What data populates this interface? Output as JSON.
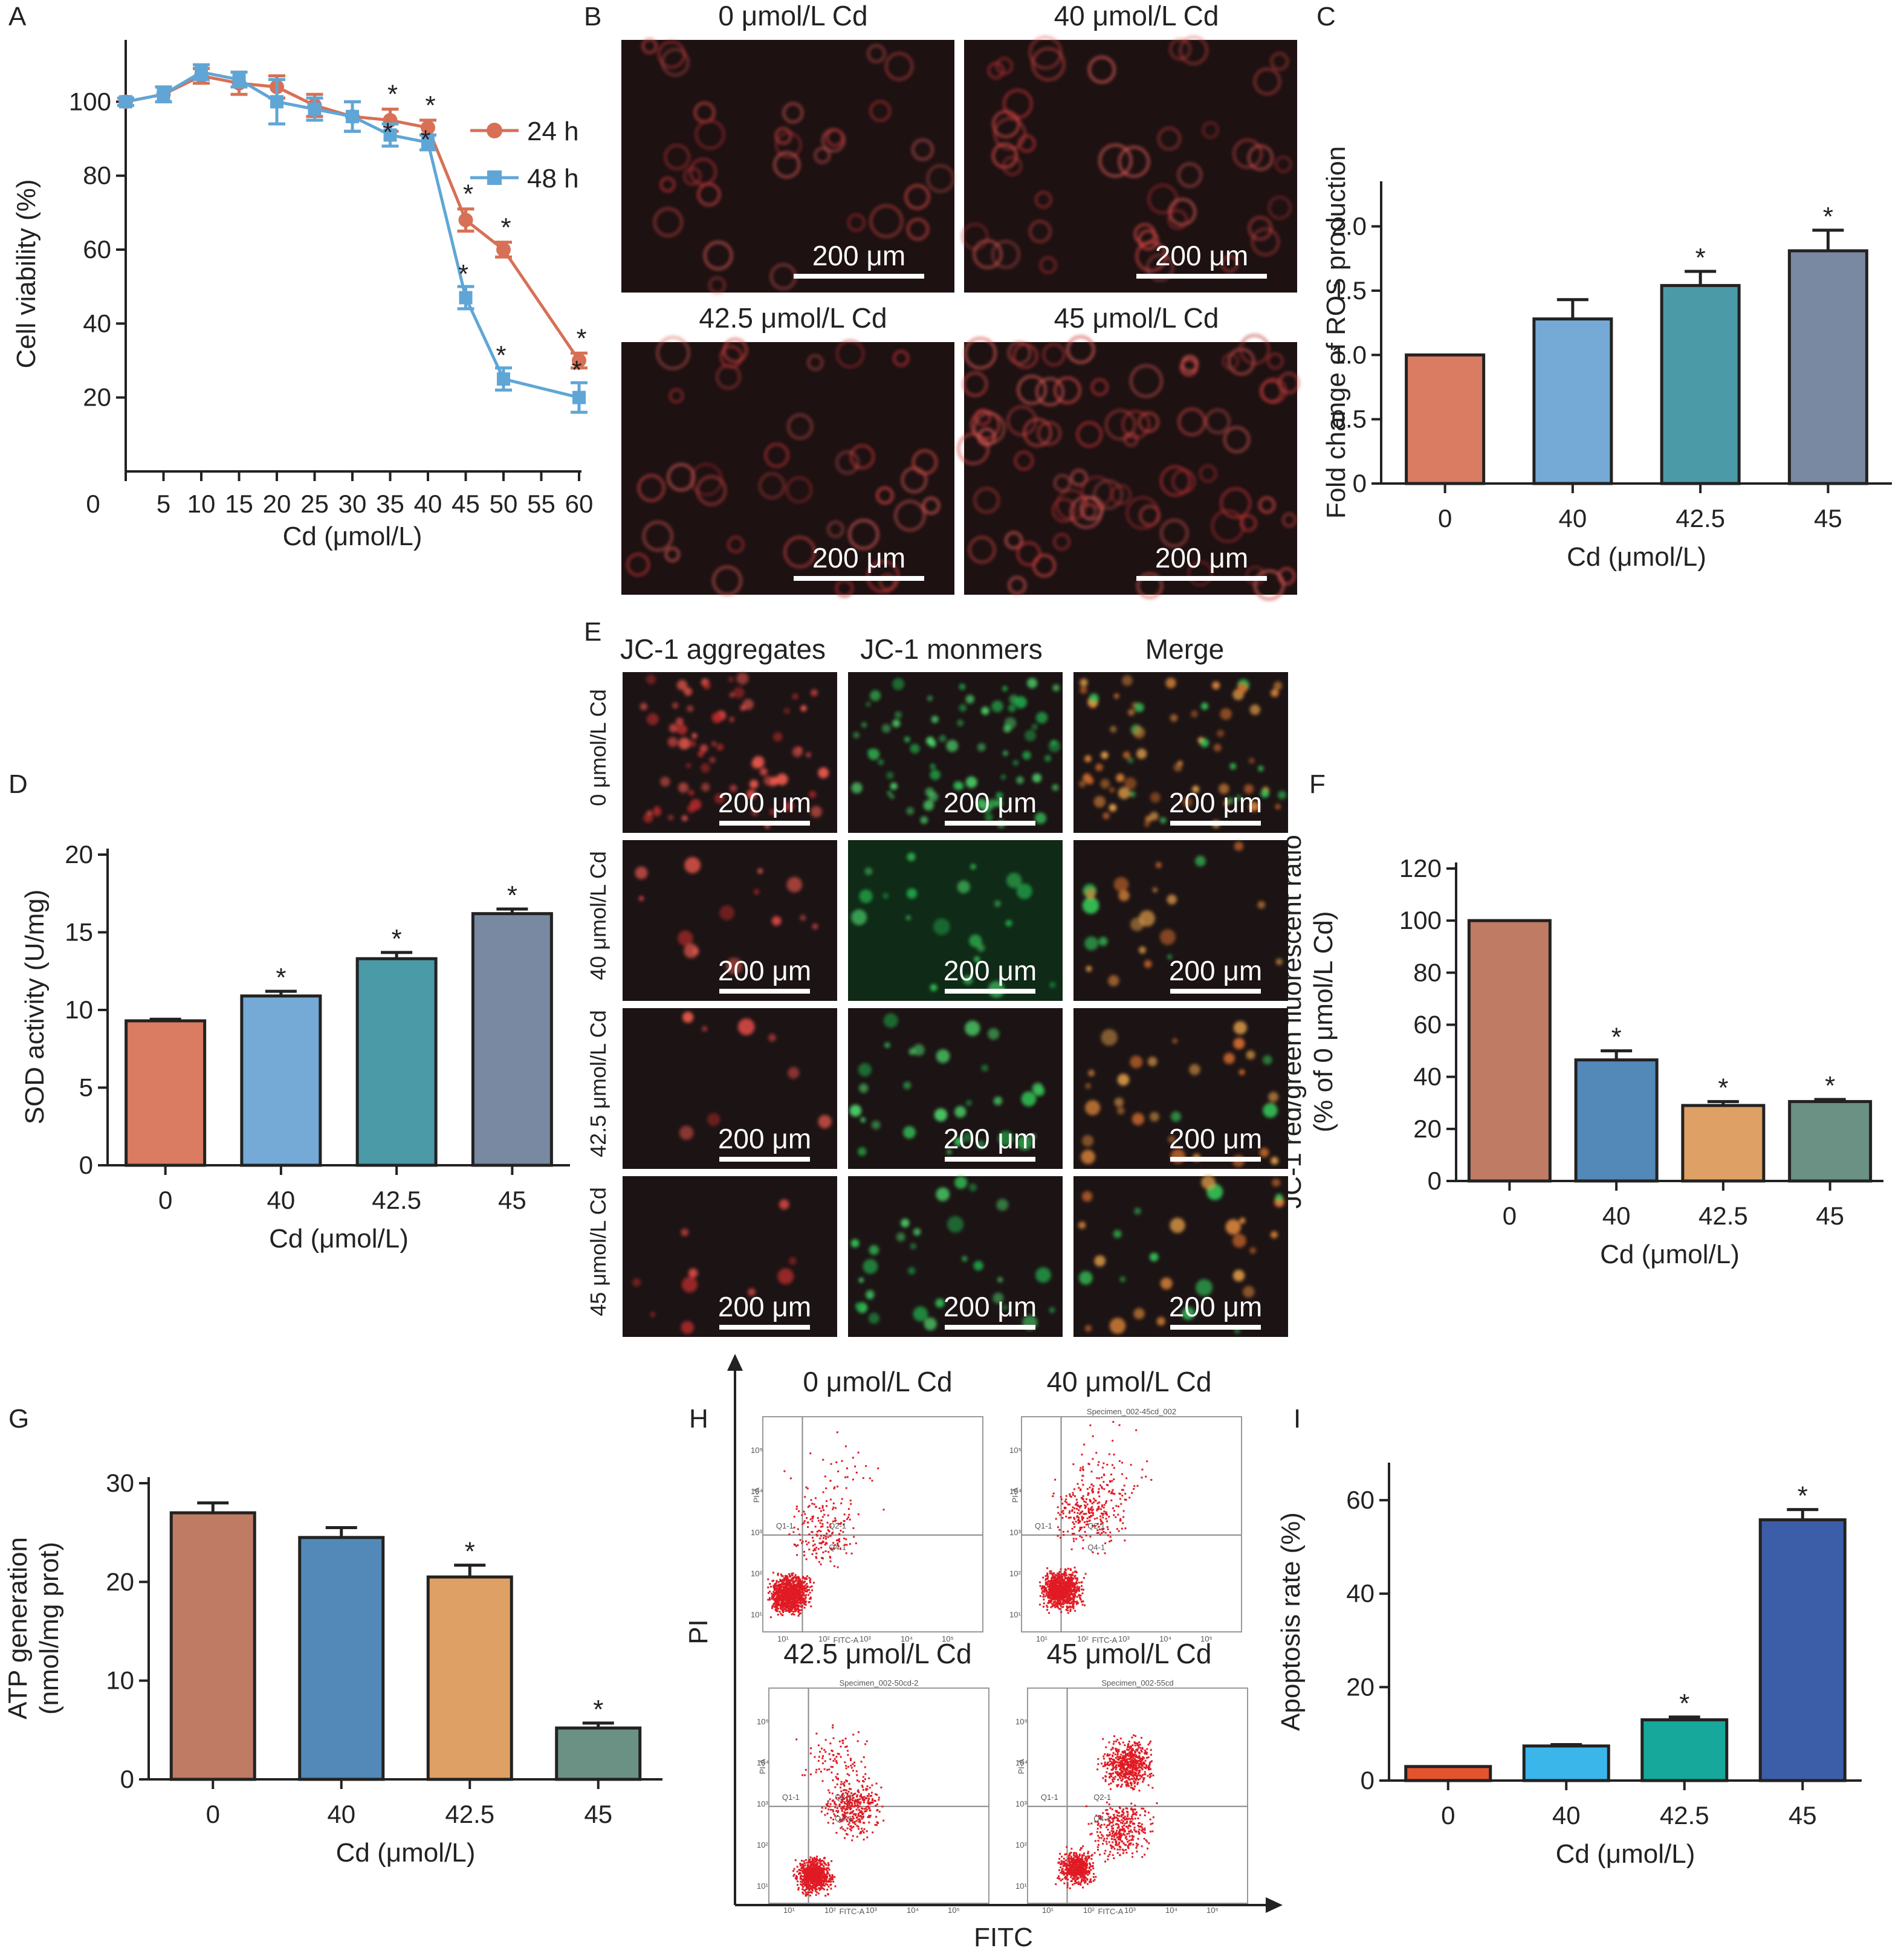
{
  "colors": {
    "red_series": "#d77055",
    "blue_series": "#5fa6d6",
    "bar_salmon": "#d97c61",
    "bar_lightblue": "#74aad5",
    "bar_teal": "#4b9aa8",
    "bar_slate": "#7a89a2",
    "bar_brown": "#bf7b63",
    "bar_steel": "#5289b8",
    "bar_orange": "#dea064",
    "bar_green": "#6b9184",
    "bar_red": "#e4532d",
    "bar_sky": "#3bb6ea",
    "bar_teal2": "#16a89b",
    "bar_navy": "#3c5ea8",
    "micro_bg": "#1c1314",
    "micro_red": "#d94845",
    "micro_green": "#33c256",
    "micro_orange": "#e0883a"
  },
  "panel_labels": {
    "A": "A",
    "B": "B",
    "C": "C",
    "D": "D",
    "E": "E",
    "F": "F",
    "G": "G",
    "H": "H",
    "I": "I"
  },
  "chart_data": [
    {
      "id": "A",
      "type": "line",
      "ylabel": "Cell viability (%)",
      "xlabel": "Cd (μmol/L)",
      "x_ticks": [
        "0",
        "5",
        "10",
        "15",
        "20",
        "25",
        "30",
        "35",
        "40",
        "45",
        "50",
        "55",
        "60"
      ],
      "y_ticks": [
        "20",
        "40",
        "60",
        "80",
        "100"
      ],
      "xlim": [
        0,
        60
      ],
      "ylim": [
        0,
        120
      ],
      "legend_position": "top-right",
      "series": [
        {
          "name": "24 h",
          "color": "#d77055",
          "marker": "circle",
          "x": [
            0,
            5,
            10,
            15,
            20,
            25,
            30,
            35,
            40,
            45,
            50,
            60
          ],
          "y": [
            100,
            102,
            107,
            105,
            104,
            99,
            96,
            95,
            93,
            68,
            60,
            30
          ],
          "err": [
            1,
            2,
            2,
            3,
            3,
            3,
            4,
            3,
            2,
            3,
            2,
            2
          ],
          "stars": [
            false,
            false,
            false,
            false,
            false,
            false,
            false,
            true,
            true,
            true,
            true,
            true
          ]
        },
        {
          "name": "48 h",
          "color": "#5fa6d6",
          "marker": "square",
          "x": [
            0,
            5,
            10,
            15,
            20,
            25,
            30,
            35,
            40,
            45,
            50,
            60
          ],
          "y": [
            100,
            102,
            108,
            106,
            100,
            98,
            96,
            91,
            89,
            47,
            25,
            20
          ],
          "err": [
            1,
            2,
            2,
            2,
            6,
            3,
            4,
            3,
            2,
            3,
            3,
            4
          ],
          "stars": [
            false,
            false,
            false,
            false,
            false,
            false,
            false,
            true,
            true,
            true,
            true,
            true
          ]
        }
      ]
    },
    {
      "id": "C",
      "type": "bar",
      "ylabel": "Fold change of ROS production",
      "xlabel": "Cd (μmol/L)",
      "categories": [
        "0",
        "40",
        "42.5",
        "45"
      ],
      "values": [
        1.0,
        1.28,
        1.54,
        1.81
      ],
      "errors": [
        0,
        0.15,
        0.11,
        0.16
      ],
      "stars": [
        false,
        false,
        true,
        true
      ],
      "colors": [
        "#d97c61",
        "#74aad5",
        "#4b9aa8",
        "#7a89a2"
      ],
      "y_ticks": [
        "0",
        "0.5",
        "1.0",
        "1.5",
        "2.0"
      ],
      "ylim": [
        0,
        2.2
      ]
    },
    {
      "id": "D",
      "type": "bar",
      "ylabel": "SOD activity (U/mg)",
      "xlabel": "Cd (μmol/L)",
      "categories": [
        "0",
        "40",
        "42.5",
        "45"
      ],
      "values": [
        9.3,
        10.9,
        13.3,
        16.2
      ],
      "errors": [
        0.1,
        0.3,
        0.4,
        0.3
      ],
      "stars": [
        false,
        true,
        true,
        true
      ],
      "colors": [
        "#d97c61",
        "#74aad5",
        "#4b9aa8",
        "#7a89a2"
      ],
      "y_ticks": [
        "0",
        "5",
        "10",
        "15",
        "20"
      ],
      "ylim": [
        0,
        20
      ]
    },
    {
      "id": "F",
      "type": "bar",
      "ylabel": "JC-1 red/green fluorescent ratio",
      "ylabel2": "(% of 0 μmol/L Cd)",
      "xlabel": "Cd (μmol/L)",
      "categories": [
        "0",
        "40",
        "42.5",
        "45"
      ],
      "values": [
        100,
        46.5,
        29,
        30.5
      ],
      "errors": [
        0,
        3.5,
        1.5,
        0.8
      ],
      "stars": [
        false,
        true,
        true,
        true
      ],
      "colors": [
        "#bf7b63",
        "#5289b8",
        "#dea064",
        "#6b9184"
      ],
      "y_ticks": [
        "0",
        "20",
        "40",
        "60",
        "80",
        "100",
        "120"
      ],
      "ylim": [
        0,
        120
      ]
    },
    {
      "id": "G",
      "type": "bar",
      "ylabel": "ATP generation",
      "ylabel2": "(nmol/mg prot)",
      "xlabel": "Cd (μmol/L)",
      "categories": [
        "0",
        "40",
        "42.5",
        "45"
      ],
      "values": [
        27,
        24.5,
        20.5,
        5.2
      ],
      "errors": [
        1,
        1,
        1.2,
        0.5
      ],
      "stars": [
        false,
        false,
        true,
        true
      ],
      "colors": [
        "#bf7b63",
        "#5289b8",
        "#dea064",
        "#6b9184"
      ],
      "y_ticks": [
        "0",
        "10",
        "20",
        "30"
      ],
      "ylim": [
        0,
        30
      ]
    },
    {
      "id": "I",
      "type": "bar",
      "ylabel": "Apoptosis rate (%)",
      "xlabel": "Cd (μmol/L)",
      "categories": [
        "0",
        "40",
        "42.5",
        "45"
      ],
      "values": [
        3,
        7.4,
        13,
        55.8
      ],
      "errors": [
        0,
        0.3,
        0.6,
        2.2
      ],
      "stars": [
        false,
        false,
        true,
        true
      ],
      "colors": [
        "#e4532d",
        "#3bb6ea",
        "#16a89b",
        "#3c5ea8"
      ],
      "y_ticks": [
        "0",
        "20",
        "40",
        "60"
      ],
      "ylim": [
        0,
        67
      ]
    }
  ],
  "panel_B": {
    "titles": [
      "0 μmol/L Cd",
      "40 μmol/L Cd",
      "42.5 μmol/L Cd",
      "45 μmol/L Cd"
    ],
    "scale_bar": "200 μm"
  },
  "panel_E": {
    "columns": [
      "JC-1 aggregates",
      "JC-1 monmers",
      "Merge"
    ],
    "rows": [
      "0 μmol/L Cd",
      "40 μmol/L Cd",
      "42.5 μmol/L Cd",
      "45 μmol/L Cd"
    ],
    "scale_bar": "200 μm"
  },
  "panel_H": {
    "titles": [
      "0 μmol/L Cd",
      "40 μmol/L Cd",
      "42.5 μmol/L Cd",
      "45 μmol/L Cd"
    ],
    "specimen_labels": [
      "",
      "Specimen_002-45cd_002",
      "Specimen_002-50cd-2",
      "Specimen_002-55cd"
    ],
    "quadrants": [
      "Q1-1",
      "Q2-1",
      "Q4-1"
    ],
    "x_axis_label": "FITC",
    "y_axis_label": "PI",
    "sub_x": "FITC-A",
    "sub_y": "PI-A",
    "decade_ticks": [
      "10¹",
      "10²",
      "10³",
      "10⁴",
      "10⁵"
    ]
  }
}
